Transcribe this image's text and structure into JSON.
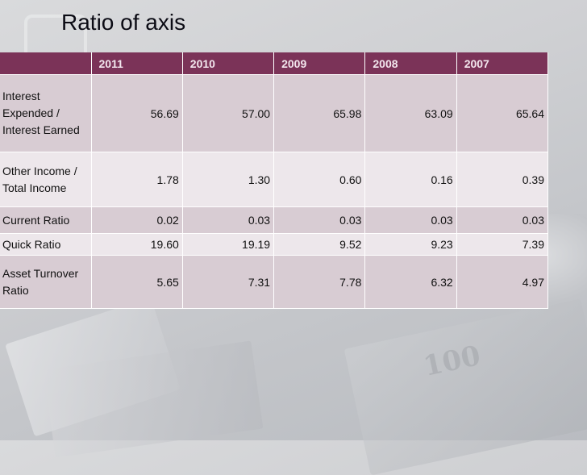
{
  "slide": {
    "title": "Ratio of axis"
  },
  "table": {
    "corner": "",
    "years": [
      "2011",
      "2010",
      "2009",
      "2008",
      "2007"
    ],
    "rows": [
      {
        "label": "Interest Expended / Interest Earned",
        "values": [
          "56.69",
          "57.00",
          "65.98",
          "63.09",
          "65.64"
        ]
      },
      {
        "label": "Other Income / Total Income",
        "values": [
          "1.78",
          "1.30",
          "0.60",
          "0.16",
          "0.39"
        ]
      },
      {
        "label": "Current Ratio",
        "values": [
          "0.02",
          "0.03",
          "0.03",
          "0.03",
          "0.03"
        ]
      },
      {
        "label": "Quick Ratio",
        "values": [
          "19.60",
          "19.19",
          "9.52",
          "9.23",
          "7.39"
        ]
      },
      {
        "label": "Asset Turnover Ratio",
        "values": [
          "5.65",
          "7.31",
          "7.78",
          "6.32",
          "4.97"
        ]
      }
    ]
  },
  "background": {
    "banknote_text": "100"
  },
  "colors": {
    "header_bg": "#7b3358",
    "row_odd_bg": "#d8ccd3",
    "row_even_bg": "#ede7eb"
  }
}
